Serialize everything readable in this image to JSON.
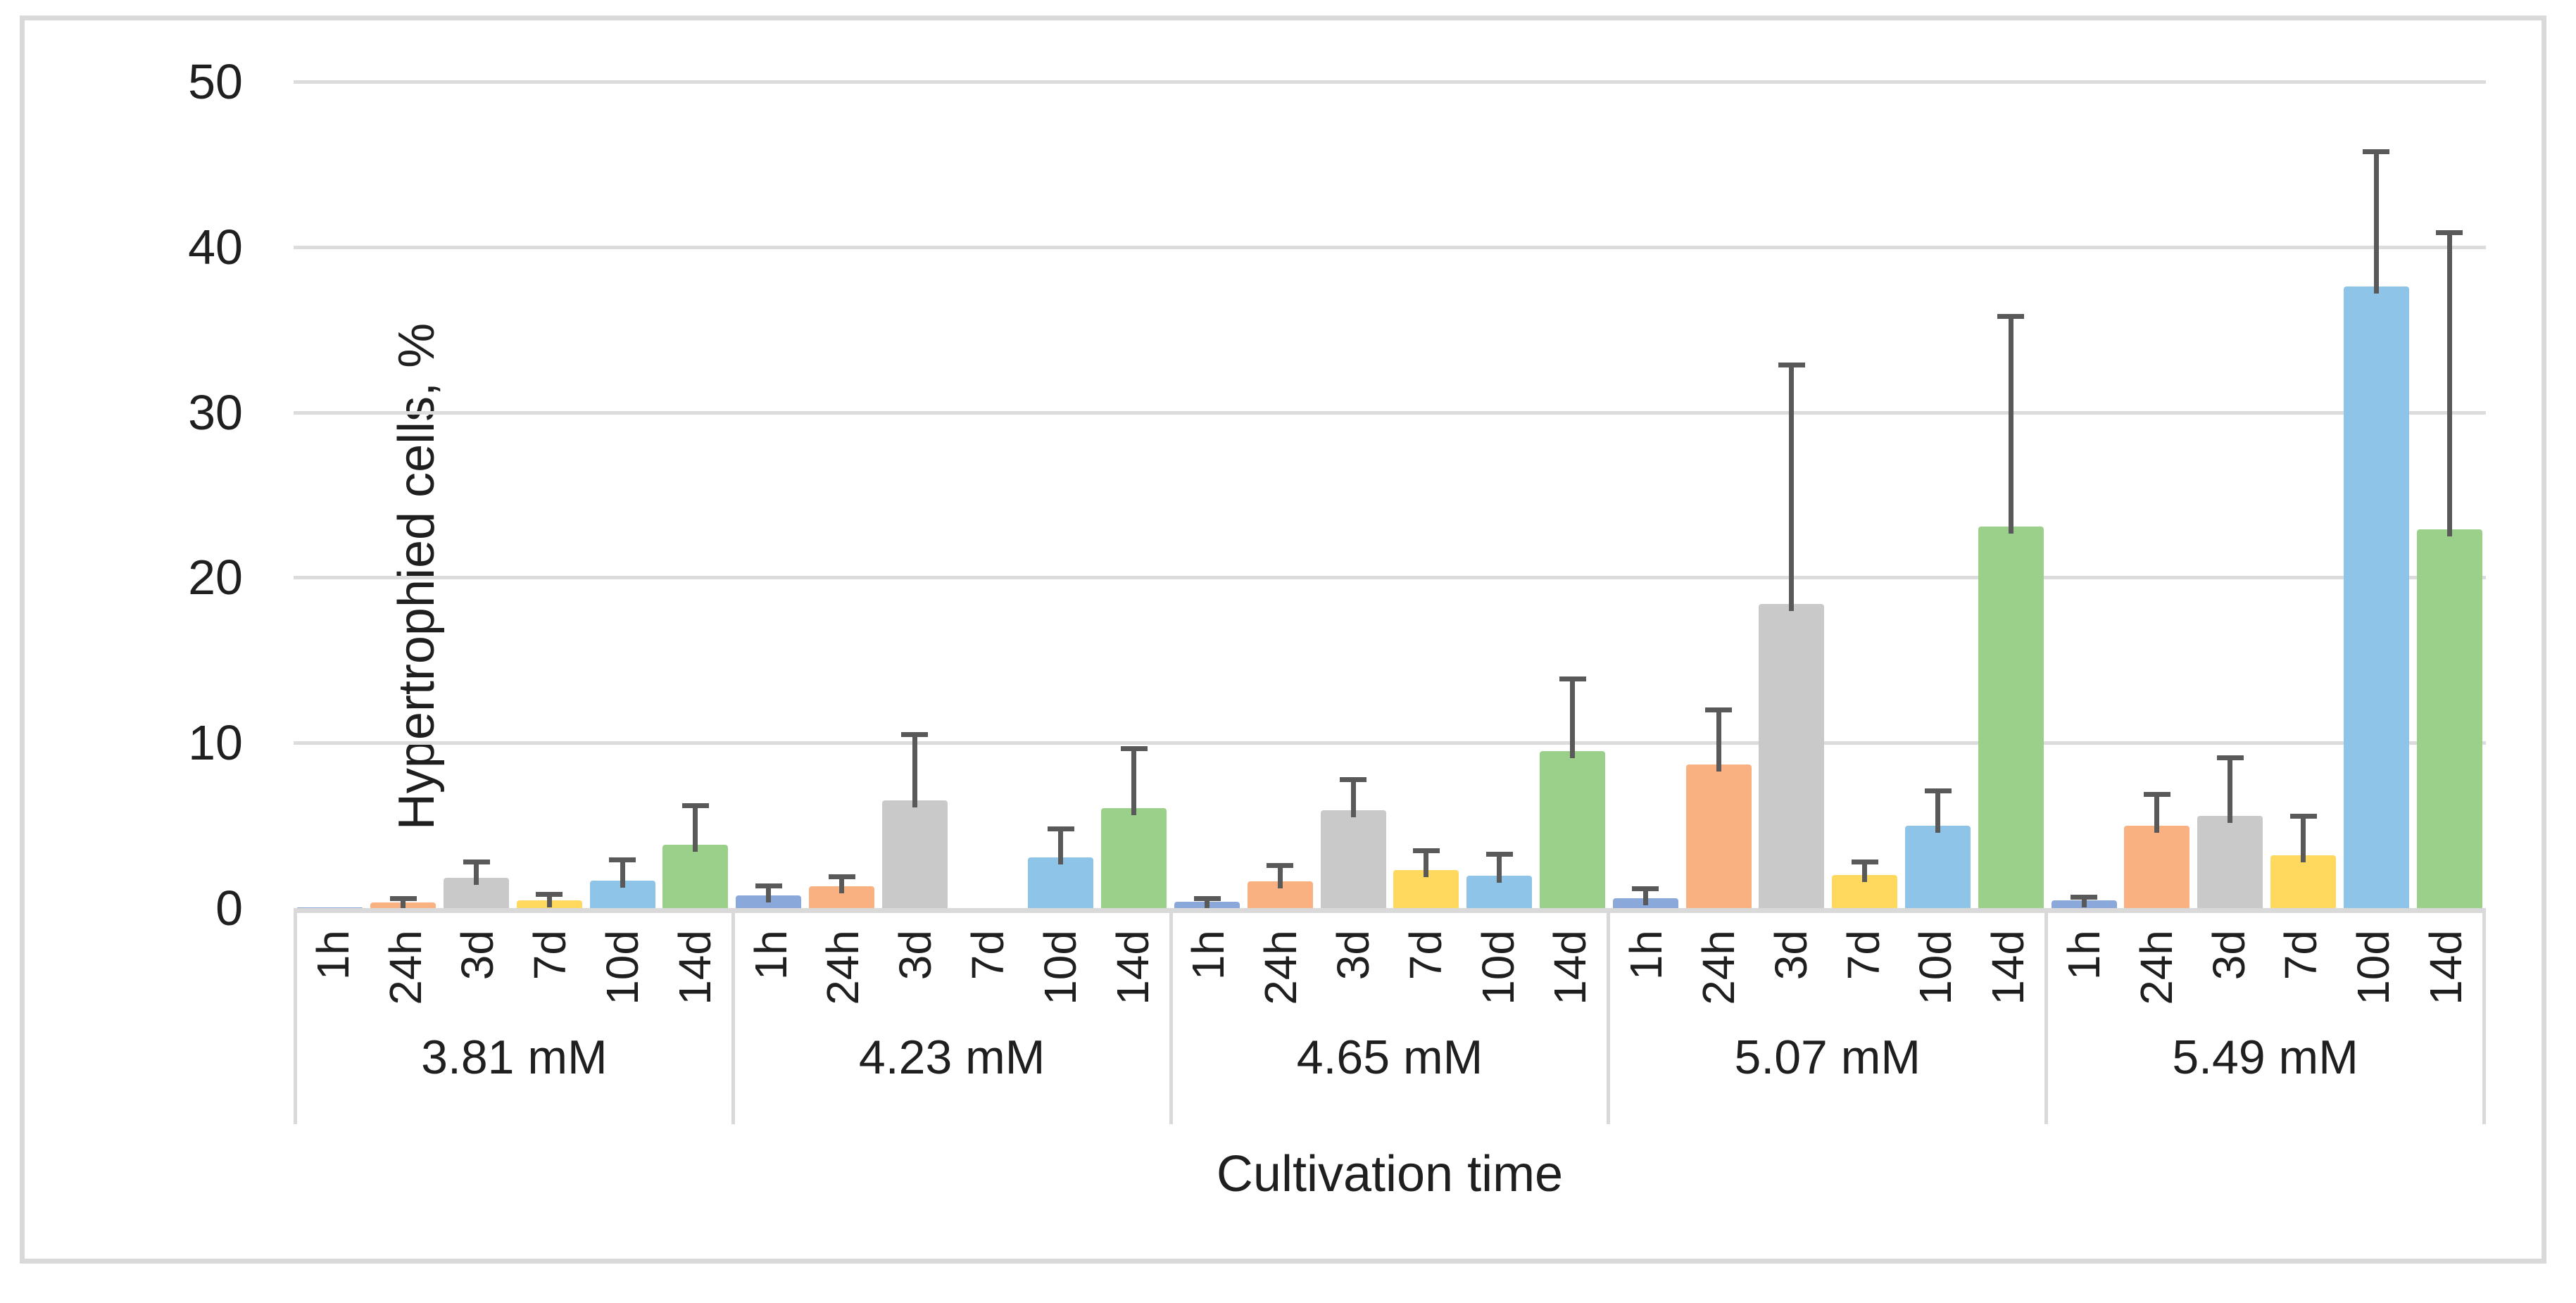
{
  "figure": {
    "background": "#ffffff",
    "border_color": "#d9d9d9",
    "gridline_color": "#dcdcdc",
    "axis_color": "#d9d9d9",
    "text_color": "#1f1f1f",
    "error_bar_color": "#595959"
  },
  "chart_data": {
    "type": "bar",
    "title": "",
    "ylabel": "Hypertrophied cells, %",
    "xlabel": "Cultivation time",
    "ylim": [
      0,
      50
    ],
    "yticks": [
      0,
      10,
      20,
      30,
      40,
      50
    ],
    "grid": true,
    "legend": false,
    "error_bars": "plus-direction only, dark gray with caps",
    "time_points": [
      "1h",
      "24h",
      "3d",
      "7d",
      "10d",
      "14d"
    ],
    "series_colors": [
      "#8aa8da",
      "#f9b181",
      "#c9c9c9",
      "#ffd95e",
      "#8ec4e8",
      "#9bd08a"
    ],
    "groups": [
      {
        "label": "3.81 mM",
        "values": [
          0.05,
          0.35,
          1.85,
          0.45,
          1.65,
          3.85
        ],
        "errors_plus": [
          0,
          0.25,
          0.95,
          0.4,
          1.3,
          2.35
        ]
      },
      {
        "label": "4.23 mM",
        "values": [
          0.75,
          1.3,
          6.5,
          0,
          3.05,
          6.05
        ],
        "errors_plus": [
          0.6,
          0.6,
          4.0,
          0,
          1.75,
          3.6
        ]
      },
      {
        "label": "4.65 mM",
        "values": [
          0.4,
          1.6,
          5.9,
          2.3,
          1.95,
          9.5
        ],
        "errors_plus": [
          0.2,
          1.0,
          1.9,
          1.2,
          1.35,
          4.4
        ]
      },
      {
        "label": "5.07 mM",
        "values": [
          0.6,
          8.7,
          18.4,
          2.0,
          5.0,
          23.1
        ],
        "errors_plus": [
          0.6,
          3.3,
          14.5,
          0.8,
          2.1,
          12.7
        ]
      },
      {
        "label": "5.49 mM",
        "values": [
          0.45,
          5.0,
          5.6,
          3.2,
          37.6,
          22.9
        ],
        "errors_plus": [
          0.25,
          1.9,
          3.5,
          2.4,
          8.2,
          18.0
        ]
      }
    ]
  }
}
